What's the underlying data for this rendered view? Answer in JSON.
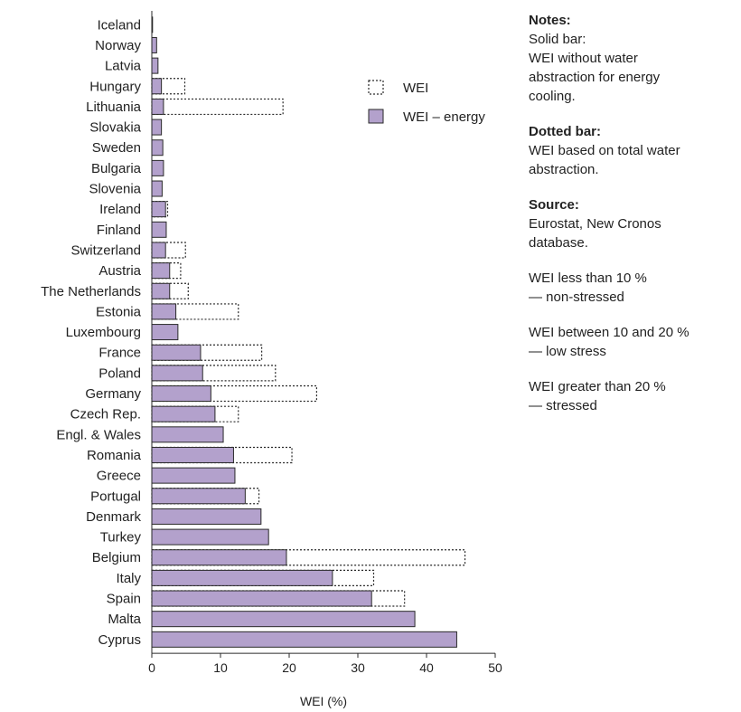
{
  "chart_data": {
    "type": "bar",
    "orientation": "horizontal",
    "categories": [
      "Iceland",
      "Norway",
      "Latvia",
      "Hungary",
      "Lithuania",
      "Slovakia",
      "Sweden",
      "Bulgaria",
      "Slovenia",
      "Ireland",
      "Finland",
      "Switzerland",
      "Austria",
      "The Netherlands",
      "Estonia",
      "Luxembourg",
      "France",
      "Poland",
      "Germany",
      "Czech Rep.",
      "Engl. & Wales",
      "Romania",
      "Greece",
      "Portugal",
      "Denmark",
      "Turkey",
      "Belgium",
      "Italy",
      "Spain",
      "Malta",
      "Cyprus"
    ],
    "series": [
      {
        "name": "WEI",
        "style": "dotted-outline",
        "values": [
          0.1,
          0.7,
          0.9,
          4.8,
          19.1,
          1.4,
          1.6,
          1.7,
          1.5,
          2.3,
          2.1,
          4.9,
          4.2,
          5.3,
          12.6,
          3.8,
          16.0,
          18.0,
          24.0,
          12.6,
          10.4,
          20.4,
          12.1,
          15.6,
          15.9,
          17.0,
          45.6,
          32.3,
          36.8,
          38.3,
          44.4
        ]
      },
      {
        "name": "WEI – energy",
        "style": "solid",
        "values": [
          0.1,
          0.7,
          0.9,
          1.4,
          1.7,
          1.4,
          1.6,
          1.7,
          1.5,
          2.0,
          2.1,
          2.0,
          2.6,
          2.6,
          3.5,
          3.8,
          7.1,
          7.4,
          8.6,
          9.2,
          10.4,
          11.9,
          12.1,
          13.6,
          15.9,
          17.0,
          19.6,
          26.3,
          32.0,
          38.3,
          44.4
        ]
      }
    ],
    "xlabel": "WEI (%)",
    "xlim": [
      0,
      50
    ],
    "xticks": [
      "0",
      "10",
      "20",
      "30",
      "40",
      "50"
    ],
    "legend_position": "top-right",
    "grid": false,
    "colors": {
      "solid_fill": "#b3a1cc",
      "solid_stroke": "#2a2a2a",
      "dotted_stroke": "#2a2a2a"
    }
  },
  "notes": {
    "title": "Notes:",
    "solid_lines": [
      "Solid bar:",
      "WEI without water",
      "abstraction for energy",
      "cooling."
    ],
    "dotted_title": "Dotted bar:",
    "dotted_lines": [
      "WEI based on total water",
      "abstraction."
    ],
    "source_title": "Source:",
    "source_lines": [
      "Eurostat, New Cronos",
      "database."
    ],
    "band1_lines": [
      "WEI less than 10 %",
      "— non-stressed"
    ],
    "band2_lines": [
      "WEI between 10 and 20 %",
      "— low stress"
    ],
    "band3_lines": [
      "WEI greater than 20 %",
      "— stressed"
    ]
  }
}
